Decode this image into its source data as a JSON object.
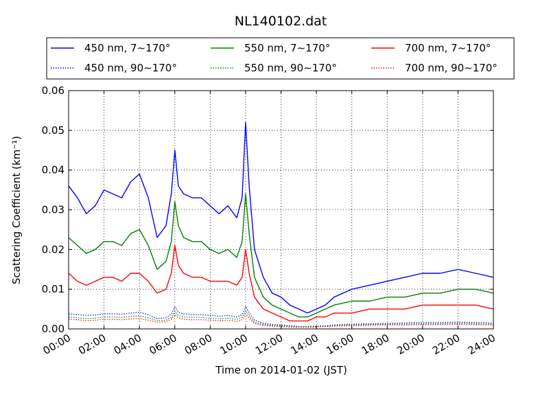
{
  "chart_data": {
    "type": "line",
    "title": "NL140102.dat",
    "xlabel": "Time on 2014-01-02 (JST)",
    "ylabel": "Scattering Coefficient (km⁻¹)",
    "xlim": [
      0,
      24
    ],
    "ylim": [
      0,
      0.06
    ],
    "grid": true,
    "legend_position": "top",
    "x_ticks": [
      0,
      2,
      4,
      6,
      8,
      10,
      12,
      14,
      16,
      18,
      20,
      22,
      24
    ],
    "x_tick_labels": [
      "00:00",
      "02:00",
      "04:00",
      "06:00",
      "08:00",
      "10:00",
      "12:00",
      "14:00",
      "16:00",
      "18:00",
      "20:00",
      "22:00",
      "24:00"
    ],
    "y_ticks": [
      0,
      0.01,
      0.02,
      0.03,
      0.04,
      0.05,
      0.06
    ],
    "y_tick_labels": [
      "0.00",
      "0.01",
      "0.02",
      "0.03",
      "0.04",
      "0.05",
      "0.06"
    ],
    "x": [
      0,
      0.5,
      1,
      1.5,
      2,
      2.5,
      3,
      3.5,
      4,
      4.5,
      5,
      5.5,
      5.8,
      6,
      6.2,
      6.5,
      7,
      7.5,
      8,
      8.5,
      9,
      9.5,
      9.8,
      10,
      10.2,
      10.5,
      11,
      11.5,
      12,
      12.5,
      13,
      13.5,
      14,
      14.5,
      15,
      16,
      17,
      18,
      19,
      20,
      21,
      22,
      23,
      24
    ],
    "series": [
      {
        "name": "450 nm, 7∼170°",
        "color": "#0000ff",
        "style": "solid",
        "values": [
          0.036,
          0.033,
          0.029,
          0.031,
          0.035,
          0.034,
          0.033,
          0.037,
          0.039,
          0.033,
          0.023,
          0.026,
          0.034,
          0.045,
          0.036,
          0.034,
          0.033,
          0.033,
          0.031,
          0.029,
          0.031,
          0.028,
          0.033,
          0.052,
          0.036,
          0.02,
          0.013,
          0.009,
          0.008,
          0.006,
          0.005,
          0.004,
          0.005,
          0.006,
          0.008,
          0.01,
          0.011,
          0.012,
          0.013,
          0.014,
          0.014,
          0.015,
          0.014,
          0.013
        ]
      },
      {
        "name": "550 nm, 7∼170°",
        "color": "#008000",
        "style": "solid",
        "values": [
          0.023,
          0.021,
          0.019,
          0.02,
          0.022,
          0.022,
          0.021,
          0.024,
          0.025,
          0.021,
          0.015,
          0.017,
          0.022,
          0.032,
          0.026,
          0.023,
          0.022,
          0.022,
          0.02,
          0.019,
          0.02,
          0.018,
          0.022,
          0.034,
          0.024,
          0.013,
          0.008,
          0.006,
          0.005,
          0.004,
          0.003,
          0.003,
          0.004,
          0.005,
          0.006,
          0.007,
          0.007,
          0.008,
          0.008,
          0.009,
          0.009,
          0.01,
          0.01,
          0.009
        ]
      },
      {
        "name": "700 nm, 7∼170°",
        "color": "#ff0000",
        "style": "solid",
        "values": [
          0.014,
          0.012,
          0.011,
          0.012,
          0.013,
          0.013,
          0.012,
          0.014,
          0.014,
          0.012,
          0.009,
          0.01,
          0.014,
          0.021,
          0.016,
          0.014,
          0.013,
          0.013,
          0.012,
          0.012,
          0.012,
          0.011,
          0.013,
          0.02,
          0.014,
          0.008,
          0.005,
          0.004,
          0.003,
          0.002,
          0.002,
          0.002,
          0.003,
          0.003,
          0.004,
          0.004,
          0.005,
          0.005,
          0.005,
          0.006,
          0.006,
          0.006,
          0.006,
          0.005
        ]
      },
      {
        "name": "450 nm, 90∼170°",
        "color": "#0000ff",
        "style": "dotted",
        "values": [
          0.0038,
          0.0036,
          0.0034,
          0.0035,
          0.0038,
          0.0038,
          0.0037,
          0.004,
          0.0042,
          0.0036,
          0.0026,
          0.0028,
          0.0037,
          0.0055,
          0.0042,
          0.0038,
          0.0036,
          0.0036,
          0.0034,
          0.0032,
          0.0034,
          0.003,
          0.0036,
          0.0057,
          0.004,
          0.0022,
          0.0014,
          0.0011,
          0.001,
          0.0008,
          0.0006,
          0.0006,
          0.0007,
          0.0008,
          0.001,
          0.0012,
          0.0013,
          0.0014,
          0.0015,
          0.0016,
          0.0016,
          0.0017,
          0.0016,
          0.0015
        ]
      },
      {
        "name": "550 nm, 90∼170°",
        "color": "#008000",
        "style": "dotted",
        "values": [
          0.003,
          0.0028,
          0.0026,
          0.0027,
          0.003,
          0.003,
          0.0029,
          0.0031,
          0.0033,
          0.0028,
          0.0021,
          0.0022,
          0.0029,
          0.0044,
          0.0034,
          0.003,
          0.0029,
          0.0029,
          0.0027,
          0.0026,
          0.0027,
          0.0024,
          0.0029,
          0.0046,
          0.0032,
          0.0017,
          0.0011,
          0.0009,
          0.0008,
          0.0006,
          0.0005,
          0.0005,
          0.0006,
          0.0007,
          0.0008,
          0.001,
          0.0011,
          0.0012,
          0.0012,
          0.0013,
          0.0013,
          0.0014,
          0.0013,
          0.0012
        ]
      },
      {
        "name": "700 nm, 90∼170°",
        "color": "#ff0000",
        "style": "dotted",
        "values": [
          0.0024,
          0.0023,
          0.0021,
          0.0022,
          0.0024,
          0.0024,
          0.0023,
          0.0025,
          0.0026,
          0.0022,
          0.0017,
          0.0018,
          0.0024,
          0.0036,
          0.0028,
          0.0024,
          0.0023,
          0.0023,
          0.0022,
          0.0021,
          0.0022,
          0.0019,
          0.0023,
          0.0038,
          0.0026,
          0.0014,
          0.0009,
          0.0007,
          0.0006,
          0.0005,
          0.0004,
          0.0004,
          0.0005,
          0.0006,
          0.0007,
          0.0008,
          0.0009,
          0.001,
          0.001,
          0.0011,
          0.0011,
          0.0012,
          0.0011,
          0.001
        ]
      }
    ]
  }
}
